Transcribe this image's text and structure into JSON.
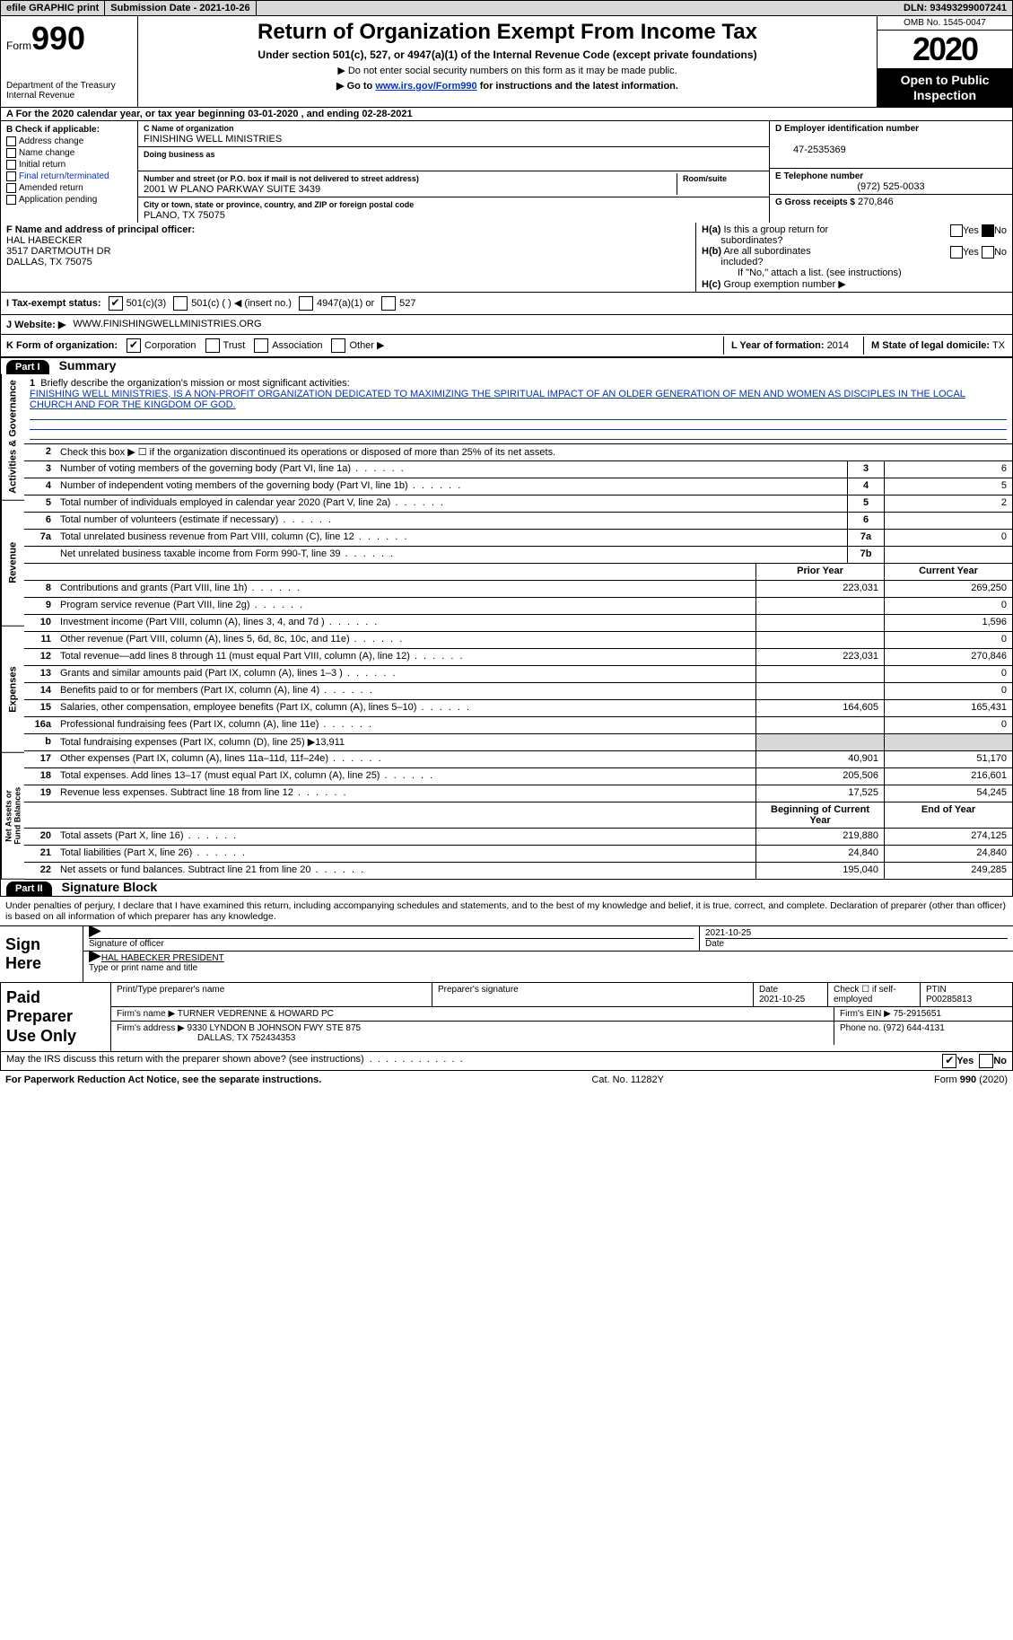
{
  "topbar": {
    "efile_label": "efile GRAPHIC print",
    "submission_date_label": "Submission Date - 2021-10-26",
    "dln_label": "DLN: 93493299007241"
  },
  "header": {
    "form_prefix": "Form",
    "form_number": "990",
    "dept": "Department of the Treasury\nInternal Revenue",
    "title": "Return of Organization Exempt From Income Tax",
    "subtitle": "Under section 501(c), 527, or 4947(a)(1) of the Internal Revenue Code (except private foundations)",
    "note1": "▶ Do not enter social security numbers on this form as it may be made public.",
    "note2_prefix": "▶ Go to ",
    "note2_link": "www.irs.gov/Form990",
    "note2_suffix": " for instructions and the latest information.",
    "omb": "OMB No. 1545-0047",
    "year": "2020",
    "open_public": "Open to Public\nInspection"
  },
  "period": "A For the 2020 calendar year, or tax year beginning 03-01-2020   , and ending 02-28-2021",
  "box_b": {
    "label": "B Check if applicable:",
    "items": [
      "Address change",
      "Name change",
      "Initial return",
      "Final return/terminated",
      "Amended return",
      "Application pending"
    ]
  },
  "box_c": {
    "name_label": "C Name of organization",
    "name": "FINISHING WELL MINISTRIES",
    "dba_label": "Doing business as",
    "addr_label": "Number and street (or P.O. box if mail is not delivered to street address)",
    "room_label": "Room/suite",
    "addr": "2001 W PLANO PARKWAY SUITE 3439",
    "city_label": "City or town, state or province, country, and ZIP or foreign postal code",
    "city": "PLANO, TX  75075"
  },
  "box_d": {
    "label": "D Employer identification number",
    "value": "47-2535369"
  },
  "box_e": {
    "label": "E Telephone number",
    "value": "(972) 525-0033"
  },
  "box_g": {
    "label": "G Gross receipts $",
    "value": "270,846"
  },
  "box_f": {
    "label": "F Name and address of principal officer:",
    "name": "HAL HABECKER",
    "addr1": "3517 DARTMOUTH DR",
    "addr2": "DALLAS, TX  75075"
  },
  "box_h": {
    "a_label": "H(a)  Is this a group return for subordinates?",
    "a_yes": "Yes",
    "a_no": "No",
    "b_label": "H(b)  Are all subordinates included?",
    "b_yes": "Yes",
    "b_no": "No",
    "b_note": "If \"No,\" attach a list. (see instructions)",
    "c_label": "H(c)  Group exemption number ▶"
  },
  "row_i": {
    "label": "I   Tax-exempt status:",
    "o1": "501(c)(3)",
    "o2": "501(c) (  ) ◀ (insert no.)",
    "o3": "4947(a)(1) or",
    "o4": "527"
  },
  "row_j": {
    "label": "J   Website: ▶",
    "value": "WWW.FINISHINGWELLMINISTRIES.ORG"
  },
  "row_k": {
    "label": "K Form of organization:",
    "o1": "Corporation",
    "o2": "Trust",
    "o3": "Association",
    "o4": "Other ▶"
  },
  "row_lm": {
    "l_label": "L Year of formation:",
    "l_value": "2014",
    "m_label": "M State of legal domicile:",
    "m_value": "TX"
  },
  "part1": {
    "tag": "Part I",
    "title": "Summary"
  },
  "mission": {
    "lead": "1   Briefly describe the organization's mission or most significant activities:",
    "text": "FINISHING WELL MINISTRIES, IS A NON-PROFIT ORGANIZATION DEDICATED TO MAXIMIZING THE SPIRITUAL IMPACT OF AN OLDER GENERATION OF MEN AND WOMEN AS DISCIPLES IN THE LOCAL CHURCH AND FOR THE KINGDOM OF GOD."
  },
  "side_tabs": {
    "gov": "Activities & Governance",
    "rev": "Revenue",
    "exp": "Expenses",
    "net": "Net Assets or\nFund Balances"
  },
  "lines_gov": [
    {
      "n": "2",
      "desc": "Check this box ▶ ☐  if the organization discontinued its operations or disposed of more than 25% of its net assets."
    },
    {
      "n": "3",
      "desc": "Number of voting members of the governing body (Part VI, line 1a)",
      "box": "3",
      "val": "6"
    },
    {
      "n": "4",
      "desc": "Number of independent voting members of the governing body (Part VI, line 1b)",
      "box": "4",
      "val": "5"
    },
    {
      "n": "5",
      "desc": "Total number of individuals employed in calendar year 2020 (Part V, line 2a)",
      "box": "5",
      "val": "2"
    },
    {
      "n": "6",
      "desc": "Total number of volunteers (estimate if necessary)",
      "box": "6",
      "val": ""
    },
    {
      "n": "7a",
      "desc": "Total unrelated business revenue from Part VIII, column (C), line 12",
      "box": "7a",
      "val": "0"
    },
    {
      "n": "",
      "desc": "Net unrelated business taxable income from Form 990-T, line 39",
      "box": "7b",
      "val": ""
    }
  ],
  "col_hdrs": {
    "prior": "Prior Year",
    "current": "Current Year",
    "boy": "Beginning of Current Year",
    "eoy": "End of Year"
  },
  "lines_rev": [
    {
      "n": "8",
      "desc": "Contributions and grants (Part VIII, line 1h)",
      "p": "223,031",
      "c": "269,250"
    },
    {
      "n": "9",
      "desc": "Program service revenue (Part VIII, line 2g)",
      "p": "",
      "c": "0"
    },
    {
      "n": "10",
      "desc": "Investment income (Part VIII, column (A), lines 3, 4, and 7d )",
      "p": "",
      "c": "1,596"
    },
    {
      "n": "11",
      "desc": "Other revenue (Part VIII, column (A), lines 5, 6d, 8c, 10c, and 11e)",
      "p": "",
      "c": "0"
    },
    {
      "n": "12",
      "desc": "Total revenue—add lines 8 through 11 (must equal Part VIII, column (A), line 12)",
      "p": "223,031",
      "c": "270,846"
    }
  ],
  "lines_exp": [
    {
      "n": "13",
      "desc": "Grants and similar amounts paid (Part IX, column (A), lines 1–3 )",
      "p": "",
      "c": "0"
    },
    {
      "n": "14",
      "desc": "Benefits paid to or for members (Part IX, column (A), line 4)",
      "p": "",
      "c": "0"
    },
    {
      "n": "15",
      "desc": "Salaries, other compensation, employee benefits (Part IX, column (A), lines 5–10)",
      "p": "164,605",
      "c": "165,431"
    },
    {
      "n": "16a",
      "desc": "Professional fundraising fees (Part IX, column (A), line 11e)",
      "p": "",
      "c": "0"
    },
    {
      "n": "b",
      "desc": "Total fundraising expenses (Part IX, column (D), line 25) ▶13,911",
      "shade": true
    },
    {
      "n": "17",
      "desc": "Other expenses (Part IX, column (A), lines 11a–11d, 11f–24e)",
      "p": "40,901",
      "c": "51,170"
    },
    {
      "n": "18",
      "desc": "Total expenses. Add lines 13–17 (must equal Part IX, column (A), line 25)",
      "p": "205,506",
      "c": "216,601"
    },
    {
      "n": "19",
      "desc": "Revenue less expenses. Subtract line 18 from line 12",
      "p": "17,525",
      "c": "54,245"
    }
  ],
  "lines_net": [
    {
      "n": "20",
      "desc": "Total assets (Part X, line 16)",
      "p": "219,880",
      "c": "274,125"
    },
    {
      "n": "21",
      "desc": "Total liabilities (Part X, line 26)",
      "p": "24,840",
      "c": "24,840"
    },
    {
      "n": "22",
      "desc": "Net assets or fund balances. Subtract line 21 from line 20",
      "p": "195,040",
      "c": "249,285"
    }
  ],
  "part2": {
    "tag": "Part II",
    "title": "Signature Block"
  },
  "sig_penalty": "Under penalties of perjury, I declare that I have examined this return, including accompanying schedules and statements, and to the best of my knowledge and belief, it is true, correct, and complete. Declaration of preparer (other than officer) is based on all information of which preparer has any knowledge.",
  "sign_here": "Sign\nHere",
  "sig_officer_label": "Signature of officer",
  "sig_date_label": "Date",
  "sig_date": "2021-10-25",
  "sig_type_label": "Type or print name and title",
  "sig_name": "HAL HABECKER  PRESIDENT",
  "paid": {
    "label": "Paid\nPreparer\nUse Only",
    "h1": "Print/Type preparer's name",
    "h2": "Preparer's signature",
    "h3": "Date",
    "date": "2021-10-25",
    "h4": "Check ☐ if self-employed",
    "h5": "PTIN",
    "ptin": "P00285813",
    "firm_name_label": "Firm's name   ▶",
    "firm_name": "TURNER VEDRENNE & HOWARD PC",
    "firm_ein_label": "Firm's EIN ▶",
    "firm_ein": "75-2915651",
    "firm_addr_label": "Firm's address ▶",
    "firm_addr1": "9330 LYNDON B JOHNSON FWY STE 875",
    "firm_addr2": "DALLAS, TX  752434353",
    "phone_label": "Phone no.",
    "phone": "(972) 644-4131"
  },
  "discuss": {
    "q": "May the IRS discuss this return with the preparer shown above? (see instructions)",
    "yes": "Yes",
    "no": "No"
  },
  "footer": {
    "left": "For Paperwork Reduction Act Notice, see the separate instructions.",
    "mid": "Cat. No. 11282Y",
    "right": "Form 990 (2020)"
  }
}
